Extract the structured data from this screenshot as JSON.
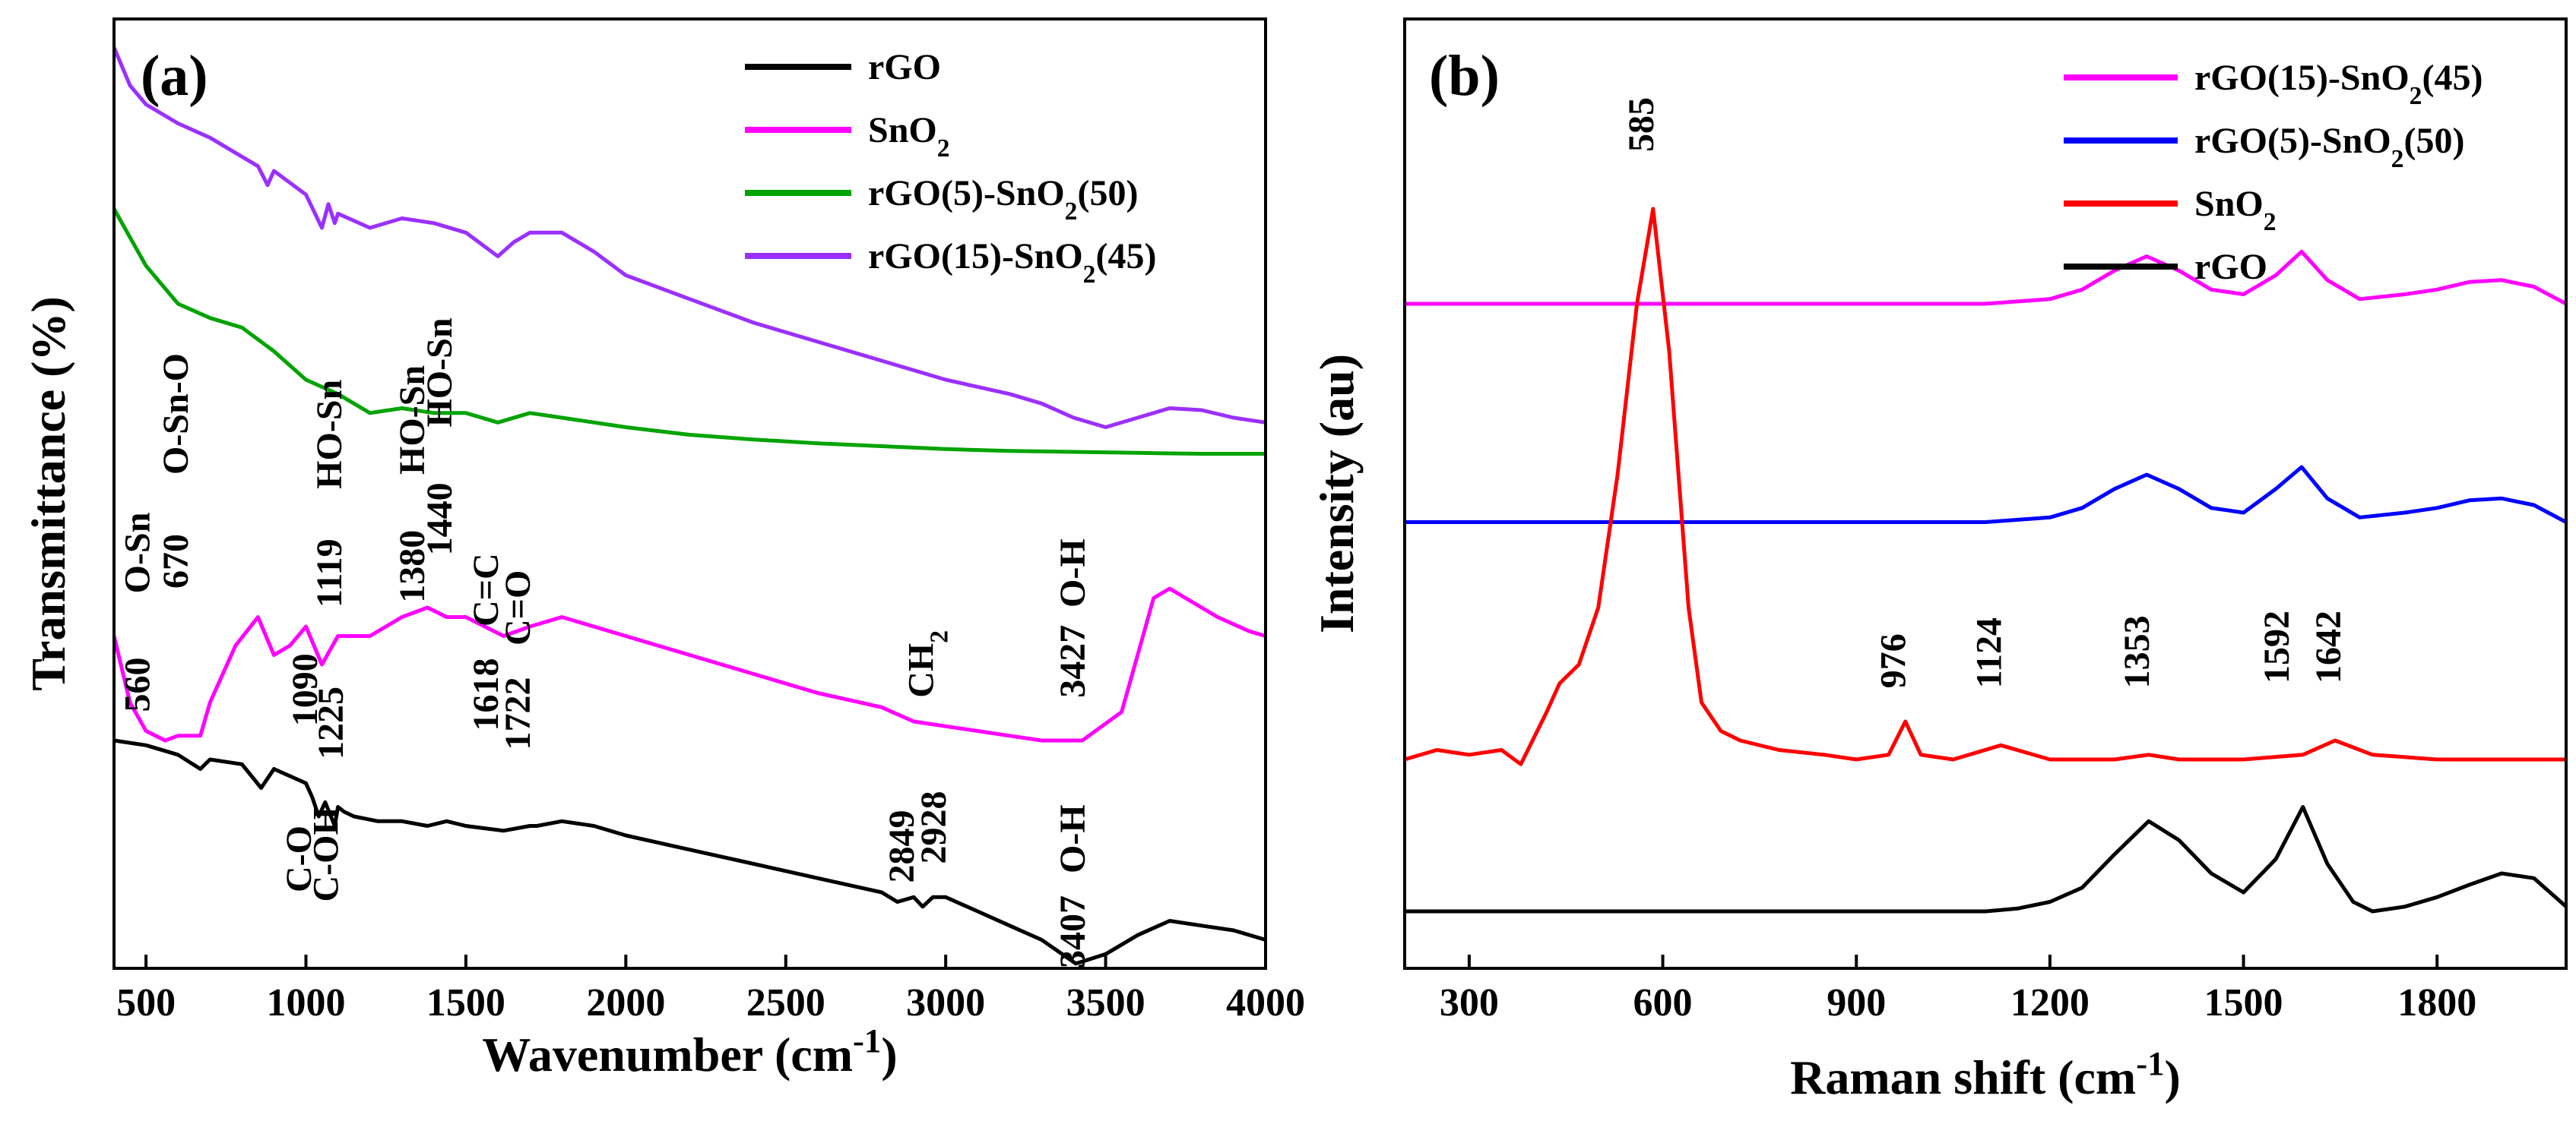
{
  "chart_data": [
    {
      "type": "line",
      "panel": "(a)",
      "title": "",
      "xlabel": "Wavenumber (cm",
      "xlabel_sup": "-1",
      "xlabel_end": ")",
      "ylabel": "Transmittance (%)",
      "xlim": [
        400,
        4000
      ],
      "ylim": [
        0,
        100
      ],
      "xticks": [
        500,
        1000,
        1500,
        2000,
        2500,
        3000,
        3500,
        4000
      ],
      "yticks": [],
      "legend_position": "top-right",
      "colors": {
        "rGO": "#000000",
        "SnO2": "#ff00ff",
        "rGO5": "#00a300",
        "rGO15": "#9b30ff"
      },
      "series": [
        {
          "key": "rGO",
          "name": "rGO",
          "color": "#000000",
          "x": [
            400,
            500,
            600,
            670,
            700,
            800,
            860,
            900,
            1000,
            1020,
            1040,
            1060,
            1090,
            1100,
            1119,
            1150,
            1225,
            1300,
            1380,
            1440,
            1500,
            1618,
            1700,
            1722,
            1800,
            1900,
            2000,
            2200,
            2400,
            2600,
            2800,
            2849,
            2900,
            2928,
            2960,
            3000,
            3100,
            3200,
            3300,
            3407,
            3500,
            3600,
            3700,
            3800,
            3900,
            4000
          ],
          "y": [
            24,
            23.5,
            22.5,
            21,
            22,
            21.5,
            19,
            21,
            19.5,
            18,
            16,
            17.5,
            15,
            17,
            16.5,
            16,
            15.5,
            15.5,
            15,
            15.5,
            15,
            14.5,
            15,
            15,
            15.5,
            15,
            14,
            12.5,
            11,
            9.5,
            8,
            7,
            7.5,
            6.5,
            7.5,
            7.5,
            6,
            4.5,
            3,
            0.5,
            1.5,
            3.5,
            5,
            4.5,
            4,
            3
          ]
        },
        {
          "key": "SnO2",
          "name": "SnO",
          "sub": "2",
          "color": "#ff00ff",
          "x": [
            400,
            450,
            500,
            560,
            600,
            670,
            700,
            780,
            850,
            900,
            950,
            1000,
            1050,
            1100,
            1200,
            1300,
            1380,
            1440,
            1500,
            1618,
            1700,
            1800,
            1900,
            2000,
            2200,
            2400,
            2600,
            2800,
            2900,
            3000,
            3100,
            3200,
            3300,
            3427,
            3550,
            3600,
            3650,
            3700,
            3750,
            3850,
            3950,
            4000
          ],
          "y": [
            35,
            28,
            25,
            24,
            24.5,
            24.5,
            28,
            34,
            37,
            33,
            34,
            36,
            32,
            35,
            35,
            37,
            38,
            37,
            37,
            35,
            36,
            37,
            36,
            35,
            33,
            31,
            29,
            27.5,
            26,
            25.5,
            25,
            24.5,
            24,
            24,
            27,
            33,
            39,
            40,
            39,
            37,
            35.5,
            35
          ]
        },
        {
          "key": "rGO5",
          "name": "rGO(5)-SnO",
          "sub": "2",
          "tail": "(50)",
          "color": "#00a300",
          "x": [
            400,
            450,
            500,
            600,
            700,
            800,
            900,
            1000,
            1100,
            1200,
            1300,
            1400,
            1500,
            1600,
            1700,
            1800,
            2000,
            2200,
            2400,
            2600,
            2800,
            3000,
            3200,
            3400,
            3600,
            3800,
            4000
          ],
          "y": [
            80,
            77,
            74,
            70,
            68.5,
            67.5,
            65,
            62,
            60.5,
            58.5,
            59,
            58.5,
            58.5,
            57.5,
            58.5,
            58,
            57,
            56.2,
            55.7,
            55.3,
            55,
            54.7,
            54.5,
            54.4,
            54.3,
            54.2,
            54.2
          ]
        },
        {
          "key": "rGO15",
          "name": "rGO(15)-SnO",
          "sub": "2",
          "tail": "(45)",
          "color": "#9b30ff",
          "x": [
            400,
            450,
            500,
            600,
            700,
            800,
            850,
            880,
            900,
            1000,
            1050,
            1070,
            1090,
            1100,
            1200,
            1300,
            1400,
            1500,
            1600,
            1650,
            1700,
            1800,
            1900,
            2000,
            2200,
            2400,
            2600,
            2800,
            3000,
            3200,
            3300,
            3400,
            3500,
            3600,
            3700,
            3800,
            3900,
            4000
          ],
          "y": [
            97,
            93,
            91,
            89,
            87.5,
            85.5,
            84.5,
            82.5,
            84,
            81.5,
            78,
            80.5,
            78.5,
            79.5,
            78,
            79,
            78.5,
            77.5,
            75,
            76.5,
            77.5,
            77.5,
            75.5,
            73,
            70.5,
            68,
            66,
            64,
            62,
            60.5,
            59.5,
            58,
            57,
            58,
            59,
            58.8,
            58,
            57.5
          ]
        }
      ],
      "legend": [
        {
          "key": "rGO",
          "text": "rGO"
        },
        {
          "key": "SnO2",
          "text": "SnO",
          "sub": "2"
        },
        {
          "key": "rGO5",
          "text": "rGO(5)-SnO",
          "sub": "2",
          "tail": "(50)"
        },
        {
          "key": "rGO15",
          "text": "rGO(15)-SnO",
          "sub": "2",
          "tail": "(45)"
        }
      ],
      "annotations": [
        {
          "text": "560",
          "x": 510,
          "y": 27,
          "rot": -90
        },
        {
          "text": "O-Sn",
          "x": 510,
          "y": 39.5,
          "rot": -90
        },
        {
          "text": "670",
          "x": 630,
          "y": 40,
          "rot": -90
        },
        {
          "text": "O-Sn-O",
          "x": 630,
          "y": 52,
          "rot": -90
        },
        {
          "text": "1090",
          "x": 1035,
          "y": 25.5,
          "rot": -90
        },
        {
          "text": "1225",
          "x": 1115,
          "y": 22,
          "rot": -90
        },
        {
          "text": "1119",
          "x": 1110,
          "y": 38,
          "rot": -90
        },
        {
          "text": "HO-Sn",
          "x": 1110,
          "y": 50.5,
          "rot": -90
        },
        {
          "text": "C-O",
          "x": 1015,
          "y": 8,
          "rot": -90
        },
        {
          "text": "C-OH",
          "x": 1100,
          "y": 7,
          "rot": -90
        },
        {
          "text": "1380",
          "x": 1370,
          "y": 38.5,
          "rot": -90
        },
        {
          "text": "1440",
          "x": 1455,
          "y": 43.5,
          "rot": -90
        },
        {
          "text": "HO-Sn",
          "x": 1370,
          "y": 52,
          "rot": -90
        },
        {
          "text": "HO-Sn",
          "x": 1455,
          "y": 57,
          "rot": -90
        },
        {
          "text": "1618",
          "x": 1600,
          "y": 25,
          "rot": -90
        },
        {
          "text": "1722",
          "x": 1700,
          "y": 23,
          "rot": -90
        },
        {
          "text": "C=C",
          "x": 1600,
          "y": 36,
          "rot": -90
        },
        {
          "text": "C=O",
          "x": 1700,
          "y": 34,
          "rot": -90
        },
        {
          "text": "2849",
          "x": 2900,
          "y": 9,
          "rot": -90
        },
        {
          "text": "2928",
          "x": 3000,
          "y": 11,
          "rot": -90
        },
        {
          "text": "CH",
          "sub": "2",
          "x": 2960,
          "y": 28.5,
          "rot": -90
        },
        {
          "text": "3407",
          "x": 3435,
          "y": 0,
          "rot": -90
        },
        {
          "text": "O-H",
          "x": 3435,
          "y": 10,
          "rot": -90
        },
        {
          "text": "3427",
          "x": 3435,
          "y": 28.5,
          "rot": -90
        },
        {
          "text": "O-H",
          "x": 3435,
          "y": 38,
          "rot": -90
        }
      ]
    },
    {
      "type": "line",
      "panel": "(b)",
      "title": "",
      "xlabel": "Raman shift (cm",
      "xlabel_sup": "-1",
      "xlabel_end": ")",
      "ylabel": "Intensity (au)",
      "xlim": [
        200,
        2000
      ],
      "ylim": [
        0,
        100
      ],
      "xticks": [
        300,
        600,
        900,
        1200,
        1500,
        1800
      ],
      "yticks": [],
      "legend_position": "top-right",
      "colors": {
        "rGO15": "#ff00ff",
        "rGO5": "#0000ff",
        "SnO2": "#ff0000",
        "rGO": "#000000"
      },
      "series": [
        {
          "key": "rGO15",
          "name": "rGO(15)-SnO",
          "sub": "2",
          "tail": "(45)",
          "color": "#ff00ff",
          "x": [
            200,
            300,
            400,
            500,
            600,
            700,
            800,
            900,
            1000,
            1100,
            1200,
            1250,
            1300,
            1350,
            1400,
            1450,
            1500,
            1550,
            1590,
            1630,
            1680,
            1750,
            1800,
            1850,
            1900,
            1950,
            2000
          ],
          "y": [
            70,
            70,
            70,
            70,
            70,
            70,
            70,
            70,
            70,
            70,
            70.5,
            71.5,
            73.5,
            75,
            73.5,
            71.5,
            71,
            73,
            75.5,
            72.5,
            70.5,
            71,
            71.5,
            72.3,
            72.5,
            71.8,
            70
          ]
        },
        {
          "key": "rGO5",
          "name": "rGO(5)-SnO",
          "sub": "2",
          "tail": "(50)",
          "color": "#0000ff",
          "x": [
            200,
            300,
            400,
            500,
            600,
            700,
            800,
            900,
            1000,
            1100,
            1200,
            1250,
            1300,
            1350,
            1400,
            1450,
            1500,
            1550,
            1590,
            1630,
            1680,
            1750,
            1800,
            1850,
            1900,
            1950,
            2000
          ],
          "y": [
            47,
            47,
            47,
            47,
            47,
            47,
            47,
            47,
            47,
            47,
            47.5,
            48.5,
            50.5,
            52,
            50.5,
            48.5,
            48,
            50.5,
            52.8,
            49.5,
            47.5,
            48,
            48.5,
            49.3,
            49.5,
            48.8,
            47
          ]
        },
        {
          "key": "SnO2",
          "name": "SnO",
          "sub": "2",
          "color": "#ff0000",
          "x": [
            200,
            250,
            300,
            350,
            380,
            420,
            440,
            470,
            500,
            530,
            560,
            585,
            610,
            640,
            660,
            690,
            720,
            780,
            850,
            900,
            950,
            976,
            1000,
            1050,
            1124,
            1200,
            1300,
            1353,
            1400,
            1500,
            1592,
            1642,
            1700,
            1800,
            1900,
            2000
          ],
          "y": [
            22,
            23,
            22.5,
            23,
            21.5,
            27,
            30,
            32,
            38,
            52,
            70,
            80,
            65,
            38,
            28,
            25,
            24,
            23,
            22.5,
            22,
            22.5,
            26,
            22.5,
            22,
            23.5,
            22,
            22,
            22.5,
            22,
            22,
            22.5,
            24,
            22.5,
            22,
            22,
            22
          ]
        },
        {
          "key": "rGO",
          "name": "rGO",
          "color": "#000000",
          "x": [
            200,
            300,
            400,
            500,
            600,
            700,
            800,
            900,
            1000,
            1100,
            1150,
            1200,
            1250,
            1300,
            1353,
            1400,
            1450,
            1500,
            1550,
            1592,
            1630,
            1670,
            1700,
            1750,
            1800,
            1850,
            1900,
            1950,
            2000
          ],
          "y": [
            6,
            6,
            6,
            6,
            6,
            6,
            6,
            6,
            6,
            6,
            6.3,
            7,
            8.5,
            12,
            15.5,
            13.5,
            10,
            8,
            11.5,
            17,
            11,
            7,
            6,
            6.5,
            7.5,
            8.8,
            10,
            9.5,
            6.5
          ]
        }
      ],
      "legend": [
        {
          "key": "rGO15",
          "text": "rGO(15)-SnO",
          "sub": "2",
          "tail": "(45)"
        },
        {
          "key": "rGO5",
          "text": "rGO(5)-SnO",
          "sub": "2",
          "tail": "(50)"
        },
        {
          "key": "SnO2",
          "text": "SnO",
          "sub": "2"
        },
        {
          "key": "rGO",
          "text": "rGO"
        }
      ],
      "annotations": [
        {
          "text": "585",
          "x": 585,
          "y": 86,
          "rot": -90
        },
        {
          "text": "976",
          "x": 976,
          "y": 29.5,
          "rot": -90
        },
        {
          "text": "1124",
          "x": 1124,
          "y": 29.5,
          "rot": -90
        },
        {
          "text": "1353",
          "x": 1353,
          "y": 29.5,
          "rot": -90
        },
        {
          "text": "1592",
          "x": 1570,
          "y": 30,
          "rot": -90
        },
        {
          "text": "1642",
          "x": 1650,
          "y": 30,
          "rot": -90
        }
      ]
    }
  ]
}
